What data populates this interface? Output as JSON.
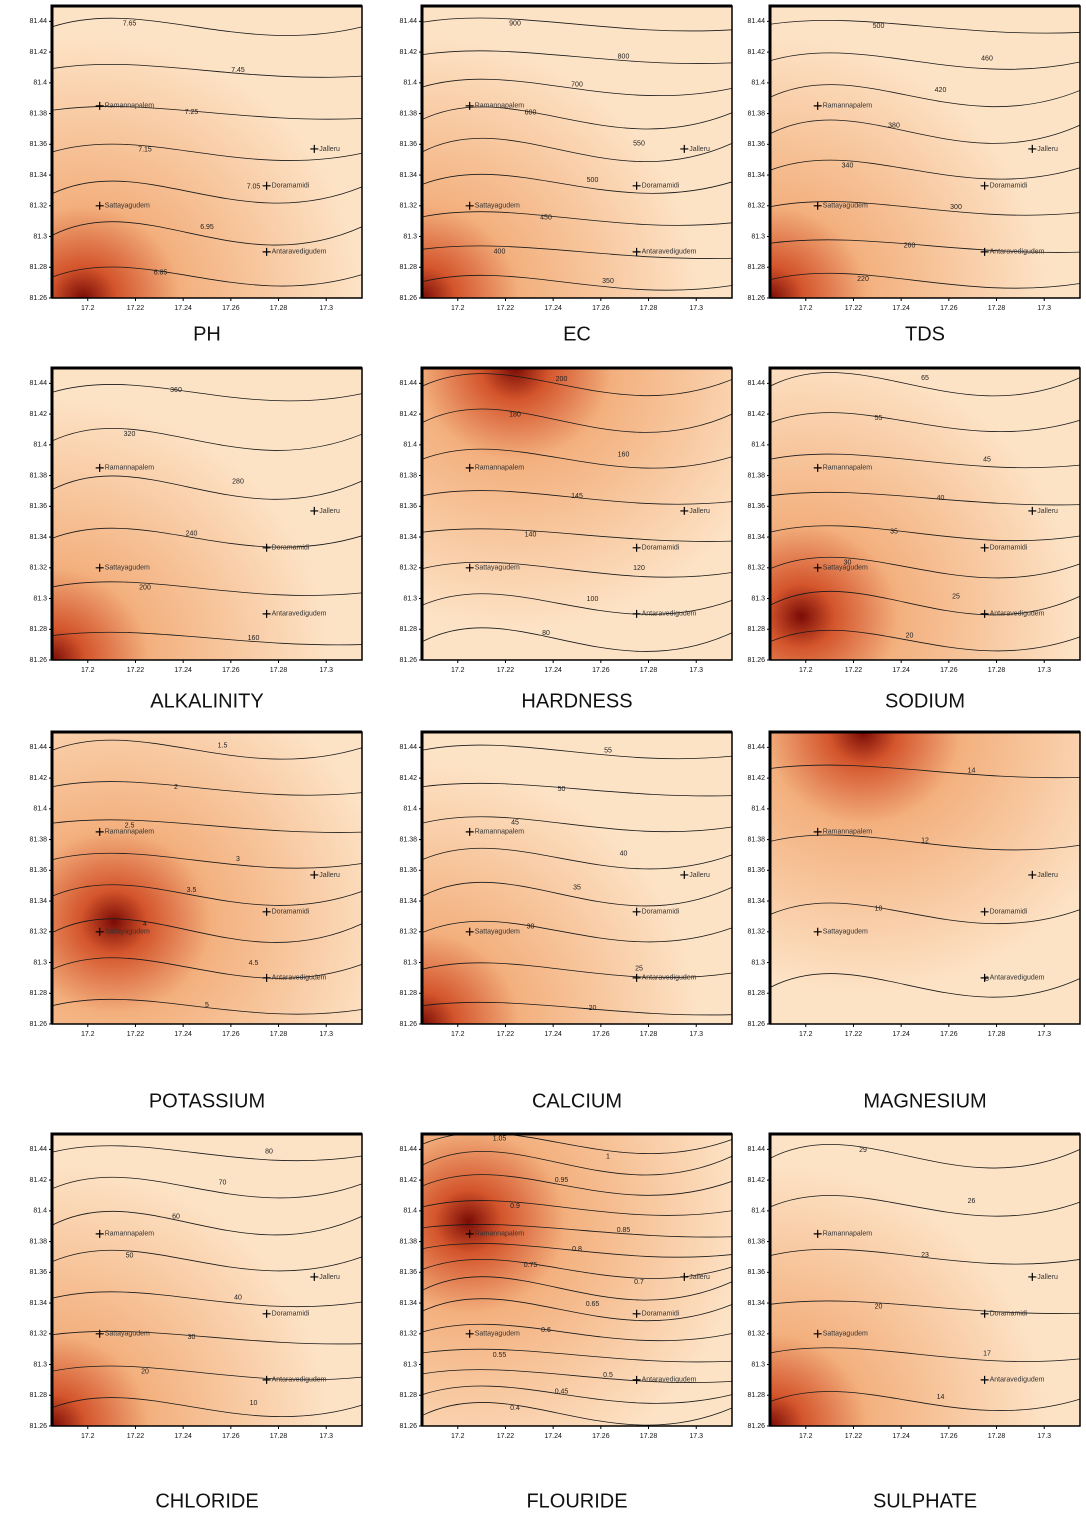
{
  "axes": {
    "xlim": [
      17.185,
      17.315
    ],
    "ylim": [
      81.26,
      81.45
    ],
    "xticks": [
      17.2,
      17.22,
      17.24,
      17.26,
      17.28,
      17.3
    ],
    "yticks": [
      81.26,
      81.28,
      81.3,
      81.32,
      81.34,
      81.36,
      81.38,
      81.4,
      81.42,
      81.44
    ]
  },
  "sites": [
    {
      "name": "Ramannapalem",
      "x": 17.205,
      "y": 81.385
    },
    {
      "name": "Doramamidi",
      "x": 17.275,
      "y": 81.333
    },
    {
      "name": "Sattayagudem",
      "x": 17.205,
      "y": 81.32
    },
    {
      "name": "Antaravedigudem",
      "x": 17.275,
      "y": 81.29
    },
    {
      "name": "Jalleru",
      "x": 17.295,
      "y": 81.357
    }
  ],
  "panels": [
    {
      "title": "PH",
      "levels": [
        7.65,
        7.45,
        7.25,
        7.15,
        7.05,
        6.95,
        6.85
      ]
    },
    {
      "title": "EC",
      "levels": [
        900,
        800,
        700,
        600,
        550,
        500,
        450,
        400,
        350
      ]
    },
    {
      "title": "TDS",
      "levels": [
        500,
        460,
        420,
        380,
        340,
        300,
        260,
        220
      ]
    },
    {
      "title": "ALKALINITY",
      "levels": [
        360,
        320,
        280,
        240,
        200,
        160
      ]
    },
    {
      "title": "HARDNESS",
      "levels": [
        200,
        180,
        160,
        145,
        140,
        120,
        100,
        80
      ]
    },
    {
      "title": "SODIUM",
      "levels": [
        65,
        55,
        45,
        40,
        35,
        30,
        25,
        20
      ]
    },
    {
      "title": "POTASSIUM",
      "levels": [
        1.5,
        2,
        2.5,
        3,
        3.5,
        4,
        4.5,
        5
      ]
    },
    {
      "title": "CALCIUM",
      "levels": [
        55,
        50,
        45,
        40,
        35,
        30,
        25,
        20
      ]
    },
    {
      "title": "MAGNESIUM",
      "levels": [
        14,
        12,
        10,
        8
      ]
    },
    {
      "title": "CHLORIDE",
      "levels": [
        80,
        70,
        60,
        50,
        40,
        30,
        20,
        10
      ]
    },
    {
      "title": "FLOURIDE",
      "levels": [
        1.05,
        1,
        0.95,
        0.9,
        0.85,
        0.8,
        0.75,
        0.7,
        0.65,
        0.6,
        0.55,
        0.5,
        0.45,
        0.4
      ]
    },
    {
      "title": "SULPHATE",
      "levels": [
        29,
        26,
        23,
        20,
        17,
        14
      ]
    }
  ]
}
